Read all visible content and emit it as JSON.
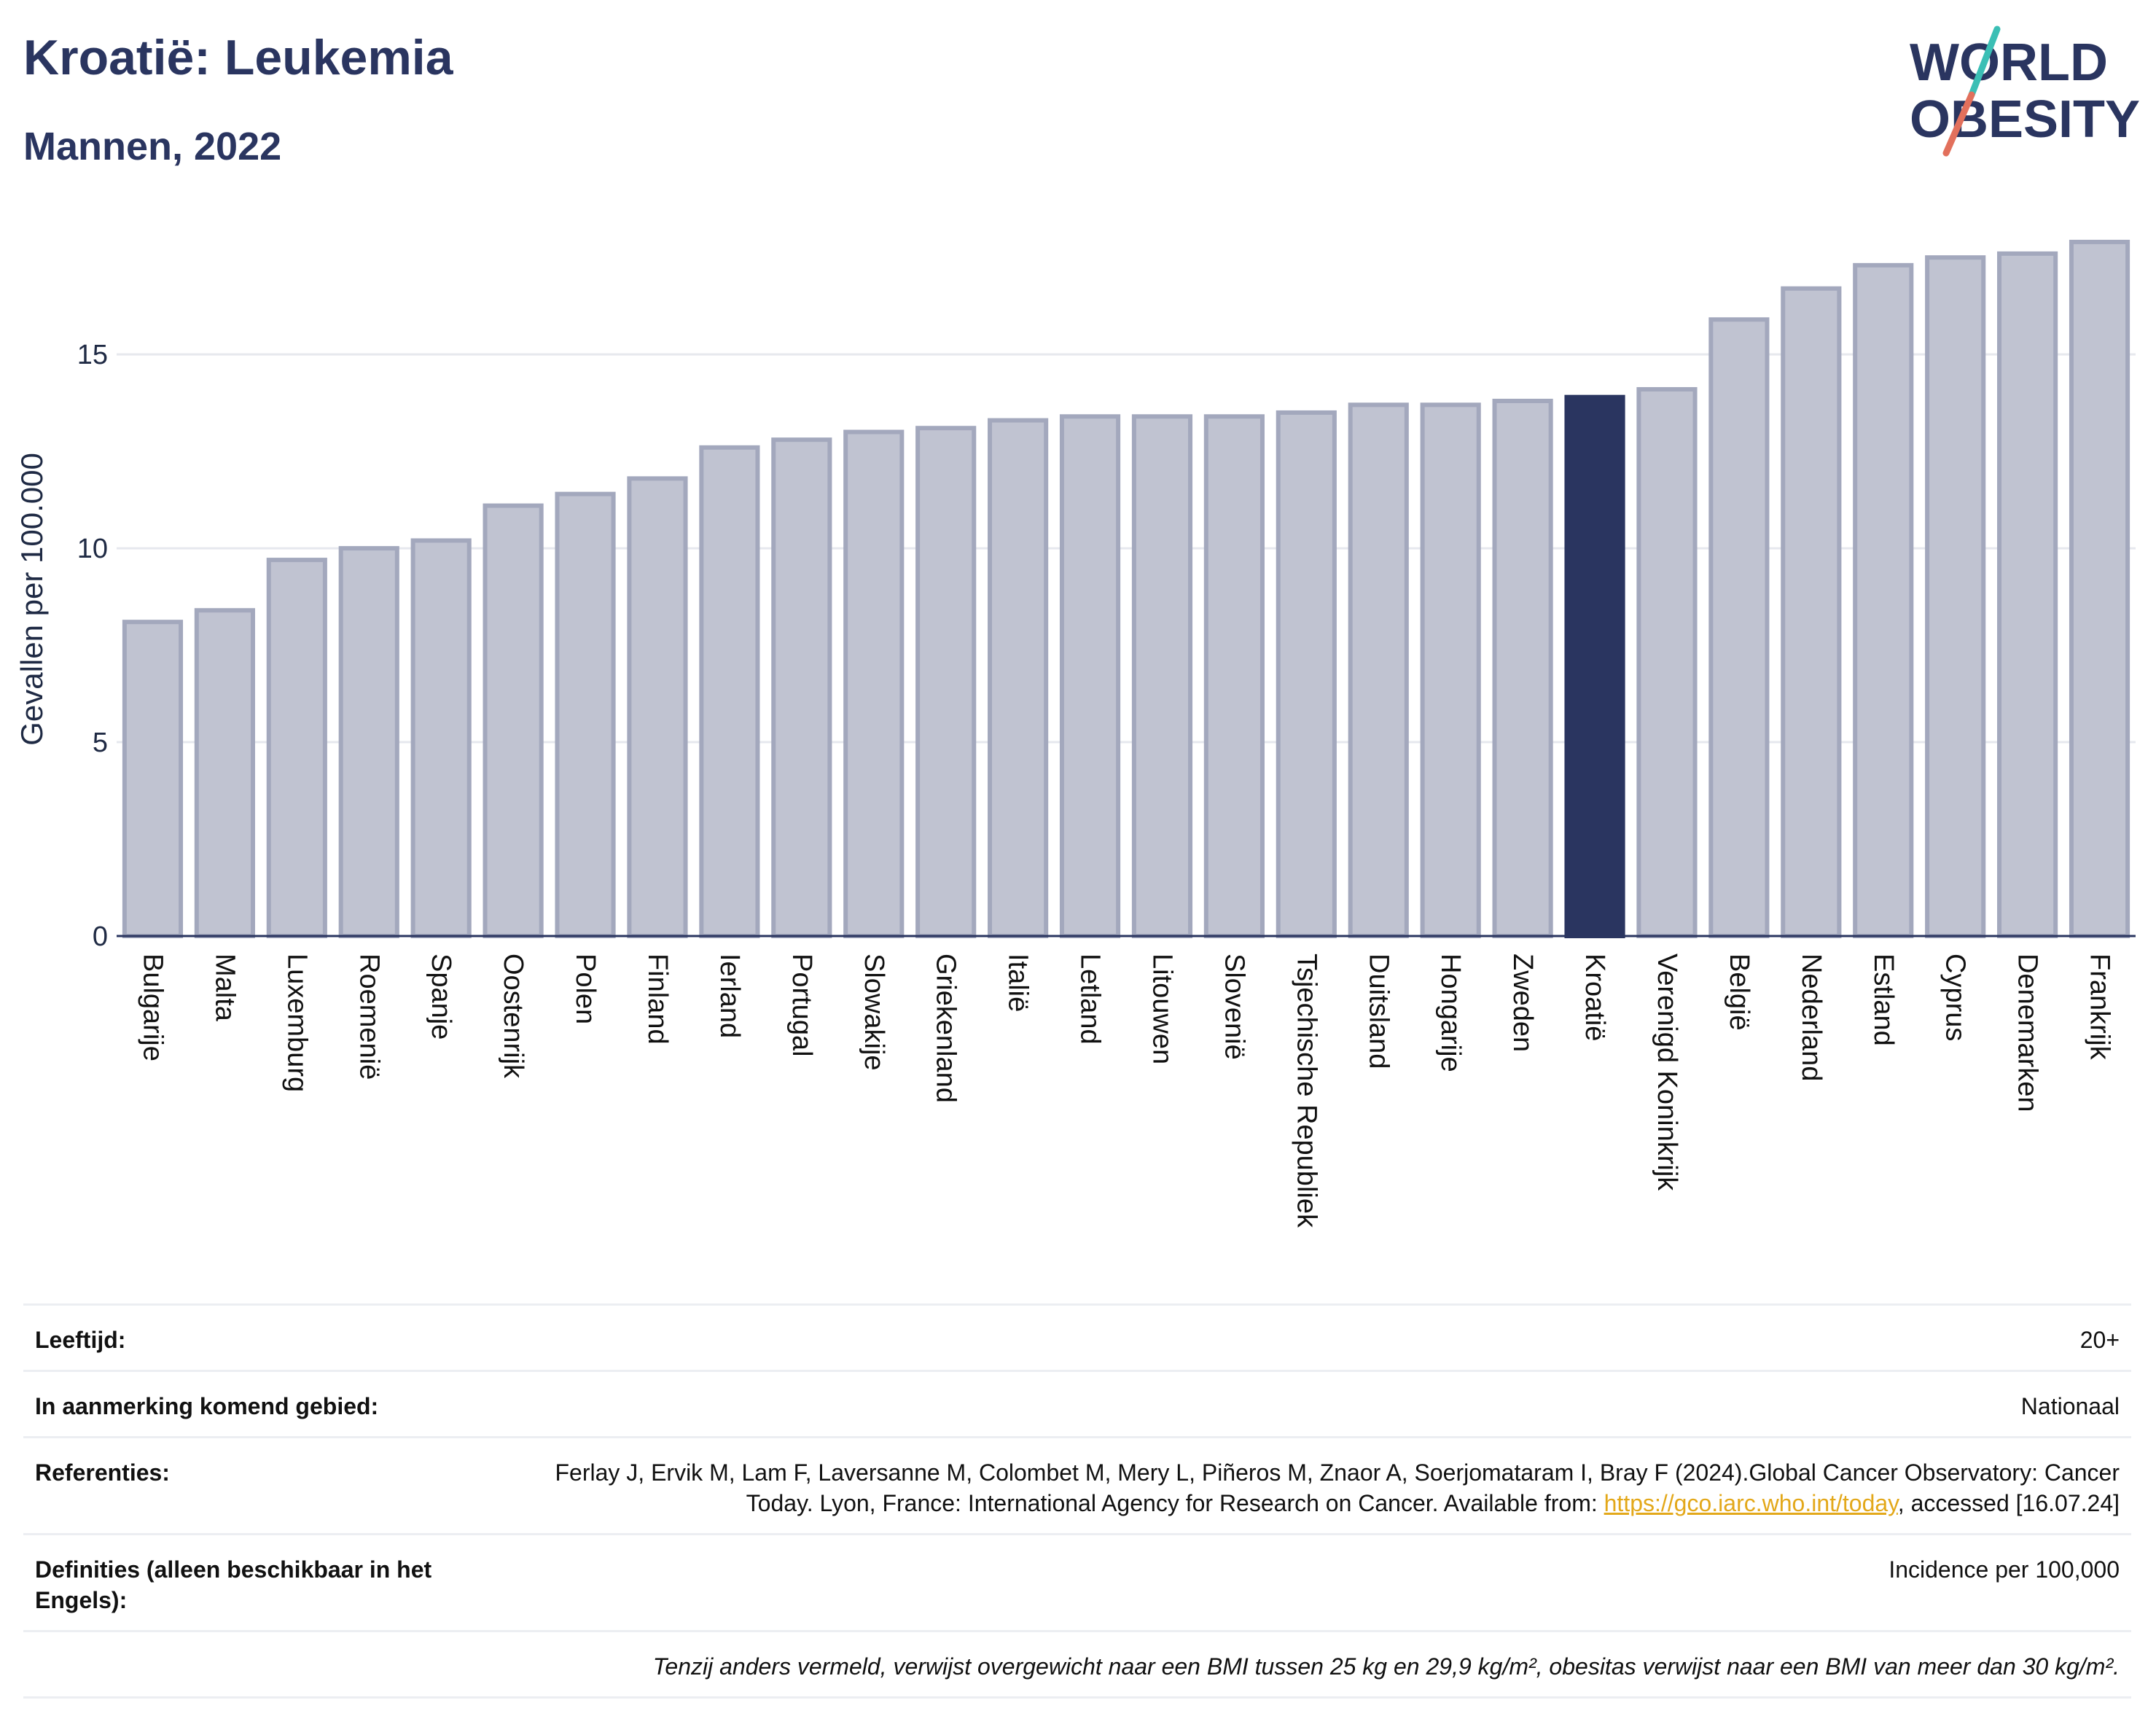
{
  "header": {
    "title": "Kroatië: Leukemia",
    "subtitle": "Mannen, 2022"
  },
  "logo": {
    "line1": "WORLD",
    "line2": "OBESITY"
  },
  "colors": {
    "bar": "#c0c3d1",
    "bar_border": "#a3a8bd",
    "highlight": "#2a3560",
    "axis": "#2a3560",
    "grid": "#e6e8ee",
    "logo_text": "#2a3560",
    "logo_slash_top": "#3bbfb5",
    "logo_slash_bottom": "#e2705c"
  },
  "chart_data": {
    "type": "bar",
    "categories": [
      "Bulgarije",
      "Malta",
      "Luxemburg",
      "Roemenië",
      "Spanje",
      "Oostenrijk",
      "Polen",
      "Finland",
      "Ierland",
      "Portugal",
      "Slowakije",
      "Griekenland",
      "Italië",
      "Letland",
      "Litouwen",
      "Slovenië",
      "Tsjechische Republiek",
      "Duitsland",
      "Hongarije",
      "Zweden",
      "Kroatië",
      "Verenigd Koninkrijk",
      "België",
      "Nederland",
      "Estland",
      "Cyprus",
      "Denemarken",
      "Frankrijk"
    ],
    "values": [
      8.1,
      8.4,
      9.7,
      10.0,
      10.2,
      11.1,
      11.4,
      11.8,
      12.6,
      12.8,
      13.0,
      13.1,
      13.3,
      13.4,
      13.4,
      13.4,
      13.5,
      13.7,
      13.7,
      13.8,
      13.9,
      14.1,
      15.9,
      16.7,
      17.3,
      17.5,
      17.6,
      17.9
    ],
    "highlight": "Kroatië",
    "ylabel": "Gevallen per 100.000",
    "xlabel": "",
    "ylim": [
      0,
      18.5
    ],
    "yticks": [
      0,
      5,
      10,
      15
    ],
    "grid": true
  },
  "info": {
    "age_label": "Leeftijd:",
    "age_value": "20+",
    "area_label": "In aanmerking komend gebied:",
    "area_value": "Nationaal",
    "refs_label": "Referenties:",
    "refs_text": "Ferlay J, Ervik M, Lam F, Laversanne M, Colombet M, Mery L, Piñeros M, Znaor A, Soerjomataram I, Bray F (2024).Global Cancer Observatory: Cancer Today. Lyon, France: International Agency for Research on Cancer. Available from: ",
    "refs_link": "https://gco.iarc.who.int/today",
    "refs_tail": ", accessed [16.07.24]",
    "defs_label": "Definities (alleen beschikbaar in het Engels):",
    "defs_value": "Incidence per 100,000",
    "note": "Tenzij anders vermeld, verwijst overgewicht naar een BMI tussen 25 kg en 29,9 kg/m², obesitas verwijst naar een BMI van meer dan 30 kg/m²."
  }
}
